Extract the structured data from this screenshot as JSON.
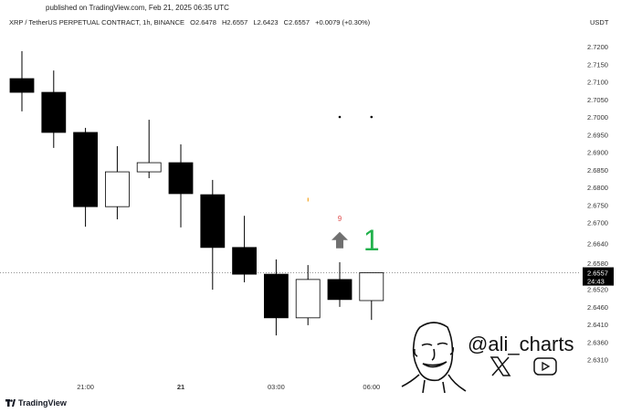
{
  "header": {
    "published": "published on TradingView.com, Feb 21, 2025 06:35 UTC",
    "symbol": "XRP / TetherUS PERPETUAL CONTRACT, 1h, BINANCE",
    "open": "O2.6478",
    "high": "H2.6557",
    "low": "L2.6423",
    "close": "C2.6557",
    "change": "+0.0079 (+0.30%)",
    "currency": "USDT"
  },
  "chart_data": {
    "type": "candlestick",
    "title": "",
    "ylim": [
      2.629,
      2.724
    ],
    "y_ticks": [
      "2.7200",
      "2.7150",
      "2.7100",
      "2.7050",
      "2.7000",
      "2.6950",
      "2.6900",
      "2.6850",
      "2.6800",
      "2.6750",
      "2.6700",
      "2.6640",
      "2.6580",
      "2.6520",
      "2.6460",
      "2.6410",
      "2.6360",
      "2.6310"
    ],
    "x_ticks": [
      {
        "index": 2,
        "label": "21:00"
      },
      {
        "index": 5,
        "label": "21"
      },
      {
        "index": 8,
        "label": "03:00"
      },
      {
        "index": 11,
        "label": "06:00"
      }
    ],
    "candles": [
      {
        "time": "19:00",
        "open": 2.7109,
        "high": 2.7187,
        "low": 2.7016,
        "close": 2.707
      },
      {
        "time": "20:00",
        "open": 2.707,
        "high": 2.7132,
        "low": 2.6912,
        "close": 2.6956
      },
      {
        "time": "21:00",
        "open": 2.6956,
        "high": 2.6969,
        "low": 2.6688,
        "close": 2.6745
      },
      {
        "time": "22:00",
        "open": 2.6745,
        "high": 2.6917,
        "low": 2.6709,
        "close": 2.6844
      },
      {
        "time": "23:00",
        "open": 2.6844,
        "high": 2.6992,
        "low": 2.6826,
        "close": 2.687
      },
      {
        "time": "00:00",
        "open": 2.687,
        "high": 2.6922,
        "low": 2.6686,
        "close": 2.6782
      },
      {
        "time": "01:00",
        "open": 2.6779,
        "high": 2.6821,
        "low": 2.6509,
        "close": 2.6629
      },
      {
        "time": "02:00",
        "open": 2.6629,
        "high": 2.6719,
        "low": 2.653,
        "close": 2.6553
      },
      {
        "time": "03:00",
        "open": 2.6553,
        "high": 2.6595,
        "low": 2.6379,
        "close": 2.6429
      },
      {
        "time": "04:00",
        "open": 2.6429,
        "high": 2.6579,
        "low": 2.6408,
        "close": 2.6538
      },
      {
        "time": "05:00",
        "open": 2.6538,
        "high": 2.6587,
        "low": 2.646,
        "close": 2.6481
      },
      {
        "time": "06:00",
        "open": 2.6478,
        "high": 2.6557,
        "low": 2.6423,
        "close": 2.6557
      }
    ],
    "last_price": {
      "value": "2.6557",
      "countdown": "24:43"
    },
    "annotations": [
      {
        "candle": 10,
        "type": "dot",
        "price": 2.7
      },
      {
        "candle": 11,
        "type": "dot",
        "price": 2.7
      },
      {
        "candle": 9,
        "type": "tick",
        "price": 2.6765,
        "color": "#f5a623"
      },
      {
        "candle": 10,
        "type": "text",
        "text": "9",
        "price": 2.6712,
        "color": "#e05050"
      },
      {
        "candle": 10,
        "type": "arrow-up",
        "price": 2.665,
        "color": "#707070"
      },
      {
        "candle": 11,
        "type": "text",
        "text": "1",
        "price": 2.665,
        "color": "#22b14c"
      }
    ],
    "colors": {
      "bear": "#000000",
      "bull": "#ffffff",
      "outline": "#000000"
    }
  },
  "watermark": {
    "handle": "@ali_charts",
    "icons": [
      "x-icon",
      "youtube-icon"
    ]
  },
  "footer": {
    "brand": "TradingView"
  }
}
